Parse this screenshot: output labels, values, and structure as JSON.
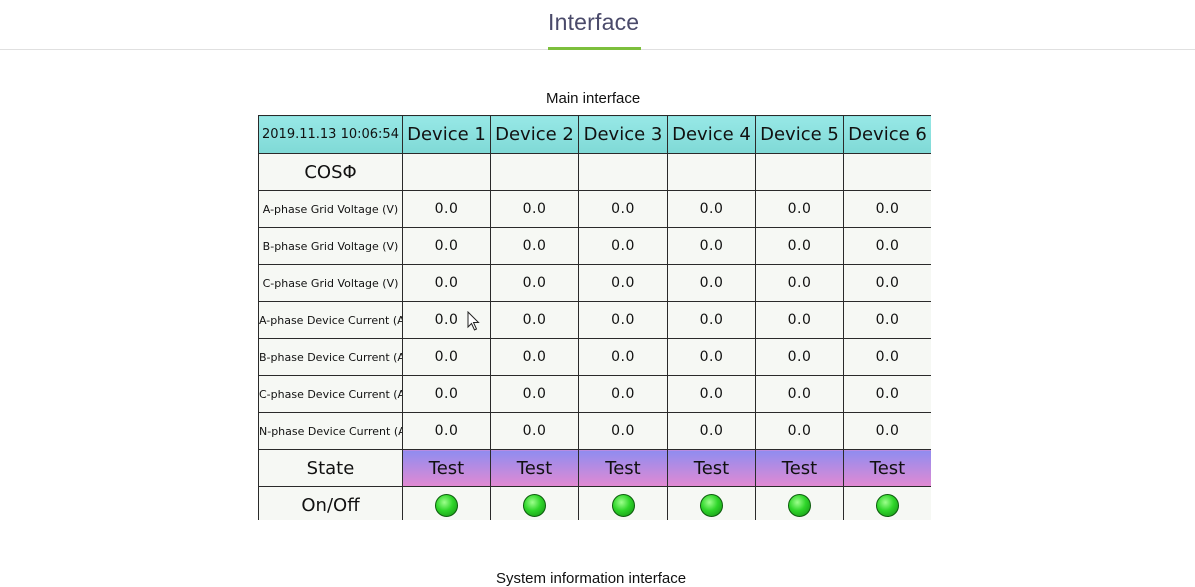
{
  "header": {
    "title": "Interface"
  },
  "captions": {
    "main": "Main interface",
    "system": "System information interface"
  },
  "hmi": {
    "timestamp": "2019.11.13 10:06:54",
    "devices": [
      "Device 1",
      "Device 2",
      "Device 3",
      "Device 4",
      "Device 5",
      "Device 6"
    ],
    "cos_label": "COSΦ",
    "rows": [
      {
        "label": "A-phase Grid Voltage (V)",
        "values": [
          "0.0",
          "0.0",
          "0.0",
          "0.0",
          "0.0",
          "0.0"
        ]
      },
      {
        "label": "B-phase Grid Voltage (V)",
        "values": [
          "0.0",
          "0.0",
          "0.0",
          "0.0",
          "0.0",
          "0.0"
        ]
      },
      {
        "label": "C-phase Grid Voltage (V)",
        "values": [
          "0.0",
          "0.0",
          "0.0",
          "0.0",
          "0.0",
          "0.0"
        ]
      },
      {
        "label": "A-phase Device Current (A)",
        "values": [
          "0.0",
          "0.0",
          "0.0",
          "0.0",
          "0.0",
          "0.0"
        ]
      },
      {
        "label": "B-phase Device Current (A)",
        "values": [
          "0.0",
          "0.0",
          "0.0",
          "0.0",
          "0.0",
          "0.0"
        ]
      },
      {
        "label": "C-phase Device Current (A)",
        "values": [
          "0.0",
          "0.0",
          "0.0",
          "0.0",
          "0.0",
          "0.0"
        ]
      },
      {
        "label": "N-phase Device Current (A)",
        "values": [
          "0.0",
          "0.0",
          "0.0",
          "0.0",
          "0.0",
          "0.0"
        ]
      }
    ],
    "state_label": "State",
    "states": [
      "Test",
      "Test",
      "Test",
      "Test",
      "Test",
      "Test"
    ],
    "onoff_label": "On/Off",
    "indicators": [
      "green-led-icon",
      "green-led-icon",
      "green-led-icon",
      "green-led-icon",
      "green-led-icon",
      "green-led-icon"
    ],
    "colors": {
      "header_bg": "#8fe3e0",
      "state_top": "#8f8cf0",
      "state_bottom": "#e28ad2",
      "led_on": "#2fd62a",
      "accent_underline": "#7cbf3c"
    }
  }
}
